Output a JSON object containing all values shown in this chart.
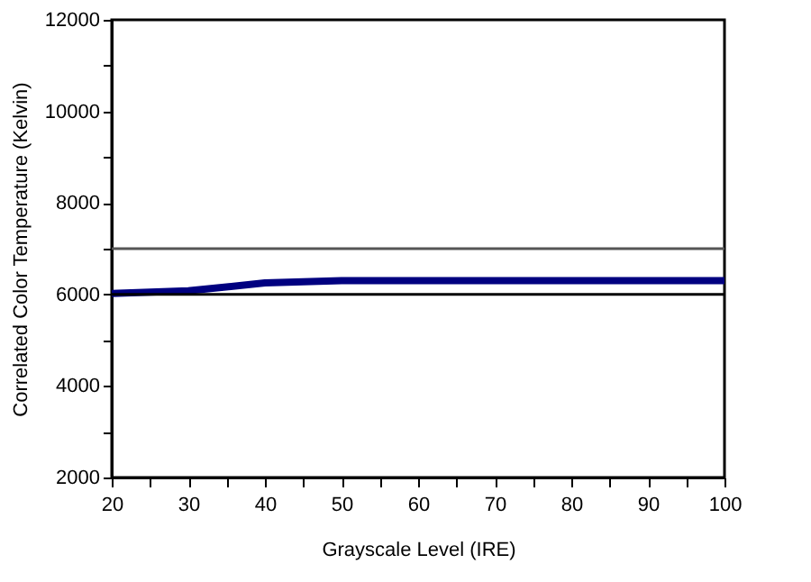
{
  "chart_data": {
    "type": "line",
    "xlabel": "Grayscale Level (IRE)",
    "ylabel": "Correlated Color Temperature (Kelvin)",
    "x": [
      20,
      30,
      40,
      50,
      60,
      70,
      80,
      90,
      100
    ],
    "series": [
      {
        "color": "#000080",
        "values": [
          6020,
          6080,
          6250,
          6300,
          6300,
          6300,
          6300,
          6300,
          6300
        ]
      }
    ],
    "xlim": [
      20,
      100
    ],
    "ylim": [
      2000,
      12000
    ],
    "xticks": [
      20,
      {
        "value": 25,
        "label": null
      },
      30,
      {
        "value": 35,
        "label": null
      },
      40,
      {
        "value": 45,
        "label": null
      },
      50,
      {
        "value": 55,
        "label": null
      },
      60,
      {
        "value": 65,
        "label": null
      },
      70,
      {
        "value": 75,
        "label": null
      },
      80,
      {
        "value": 85,
        "label": null
      },
      90,
      {
        "value": 95,
        "label": null
      },
      100
    ],
    "yticks": [
      2000,
      {
        "value": 3000,
        "label": null
      },
      4000,
      {
        "value": 5000,
        "label": null
      },
      6000,
      {
        "value": 7000,
        "label": null
      },
      8000,
      {
        "value": 9000,
        "label": null
      },
      10000,
      {
        "value": 11000,
        "label": null
      },
      12000
    ],
    "ref_lines": [
      {
        "axis": "y",
        "value": 7000,
        "color": "#555555"
      },
      {
        "axis": "y",
        "value": 6000,
        "color": "#000000"
      }
    ],
    "grid": false,
    "marker": "none",
    "line_style": "solid"
  }
}
